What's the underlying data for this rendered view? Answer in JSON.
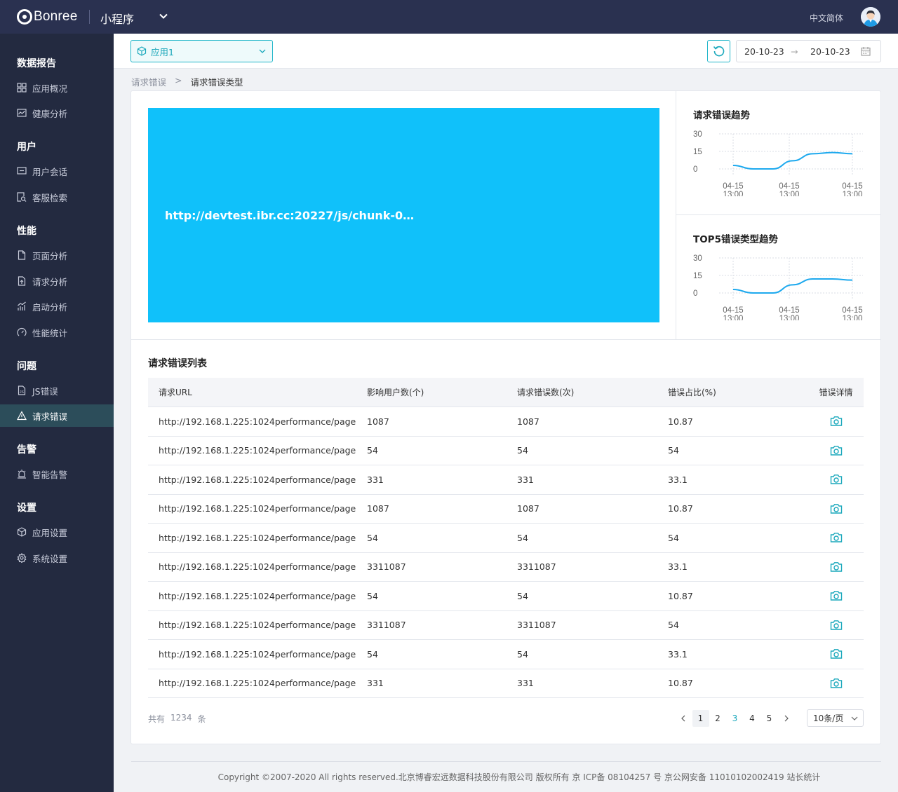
{
  "topbar": {
    "logo_text": "Bonree",
    "product": "小程序",
    "language": "中文简体"
  },
  "sidebar": {
    "sections": [
      {
        "title": "数据报告",
        "items": [
          {
            "label": "应用概况",
            "icon": "grid-icon"
          },
          {
            "label": "健康分析",
            "icon": "chart-line-icon"
          }
        ]
      },
      {
        "title": "用户",
        "items": [
          {
            "label": "用户会话",
            "icon": "chat-icon"
          },
          {
            "label": "客服检索",
            "icon": "doc-search-icon"
          }
        ]
      },
      {
        "title": "性能",
        "items": [
          {
            "label": "页面分析",
            "icon": "page-icon"
          },
          {
            "label": "请求分析",
            "icon": "upload-doc-icon"
          },
          {
            "label": "启动分析",
            "icon": "bar-trend-icon"
          },
          {
            "label": "性能统计",
            "icon": "gauge-icon"
          }
        ]
      },
      {
        "title": "问题",
        "items": [
          {
            "label": "JS错误",
            "icon": "js-file-icon"
          },
          {
            "label": "请求错误",
            "icon": "warning-icon",
            "active": true
          }
        ]
      },
      {
        "title": "告警",
        "items": [
          {
            "label": "智能告警",
            "icon": "alarm-icon"
          }
        ]
      },
      {
        "title": "设置",
        "items": [
          {
            "label": "应用设置",
            "icon": "cube-icon"
          },
          {
            "label": "系统设置",
            "icon": "gear-icon"
          }
        ]
      }
    ]
  },
  "filters": {
    "app_select": "应用1",
    "date_start": "20-10-23",
    "date_arrow": "→",
    "date_end": "20-10-23"
  },
  "breadcrumb": {
    "parent": "请求错误",
    "separator": ">",
    "current": "请求错误类型"
  },
  "treemap": {
    "label": "http://devtest.ibr.cc:20227/js/chunk-0…",
    "color": "#10c1fa"
  },
  "chart_data": [
    {
      "type": "line",
      "title": "请求错误趋势",
      "yticks": [
        0,
        15,
        30
      ],
      "ylim": [
        0,
        30
      ],
      "xticks": [
        {
          "date": "04-15",
          "time": "13:00"
        },
        {
          "date": "04-15",
          "time": "13:00"
        },
        {
          "date": "04-15",
          "time": "13:00"
        }
      ],
      "values": [
        3,
        0,
        0,
        7,
        13,
        14,
        13
      ],
      "color": "#1da9ee"
    },
    {
      "type": "line",
      "title": "TOP5错误类型趋势",
      "yticks": [
        0,
        15,
        30
      ],
      "ylim": [
        0,
        30
      ],
      "xticks": [
        {
          "date": "04-15",
          "time": "13:00"
        },
        {
          "date": "04-15",
          "time": "13:00"
        },
        {
          "date": "04-15",
          "time": "13:00"
        }
      ],
      "values": [
        3,
        0,
        0,
        7,
        12,
        12,
        11
      ],
      "color": "#1da9ee"
    }
  ],
  "error_list": {
    "title": "请求错误列表",
    "columns": [
      "请求URL",
      "影响用户数(个)",
      "请求错误数(次)",
      "错误占比(%)",
      "错误详情"
    ],
    "rows": [
      [
        "http://192.168.1.225:1024performance/page",
        "1087",
        "1087",
        "10.87"
      ],
      [
        "http://192.168.1.225:1024performance/page",
        "54",
        "54",
        "54"
      ],
      [
        "http://192.168.1.225:1024performance/page",
        "331",
        "331",
        "33.1"
      ],
      [
        "http://192.168.1.225:1024performance/page",
        "1087",
        "1087",
        "10.87"
      ],
      [
        "http://192.168.1.225:1024performance/page",
        "54",
        "54",
        "54"
      ],
      [
        "http://192.168.1.225:1024performance/page",
        "3311087",
        "3311087",
        "33.1"
      ],
      [
        "http://192.168.1.225:1024performance/page",
        "54",
        "54",
        "10.87"
      ],
      [
        "http://192.168.1.225:1024performance/page",
        "3311087",
        "3311087",
        "54"
      ],
      [
        "http://192.168.1.225:1024performance/page",
        "54",
        "54",
        "33.1"
      ],
      [
        "http://192.168.1.225:1024performance/page",
        "331",
        "331",
        "10.87"
      ]
    ],
    "detail_icon": "camera-icon"
  },
  "pagination": {
    "total_prefix": "共有",
    "total": "1234",
    "total_suffix": "条",
    "pages": [
      "1",
      "2",
      "3",
      "4",
      "5"
    ],
    "current_page": "1",
    "page_size": "10条/页"
  },
  "footer": {
    "text": "Copyright ©2007-2020 All rights reserved.北京博睿宏远数据科技股份有限公司 版权所有 京 ICP备 08104257 号 京公网安备 11010102002419 站长统计"
  },
  "colors": {
    "topbar": "#2a3150",
    "sidebar": "#232a40",
    "accent": "#1fb5c9",
    "active_nav": "#2c4d5a"
  }
}
